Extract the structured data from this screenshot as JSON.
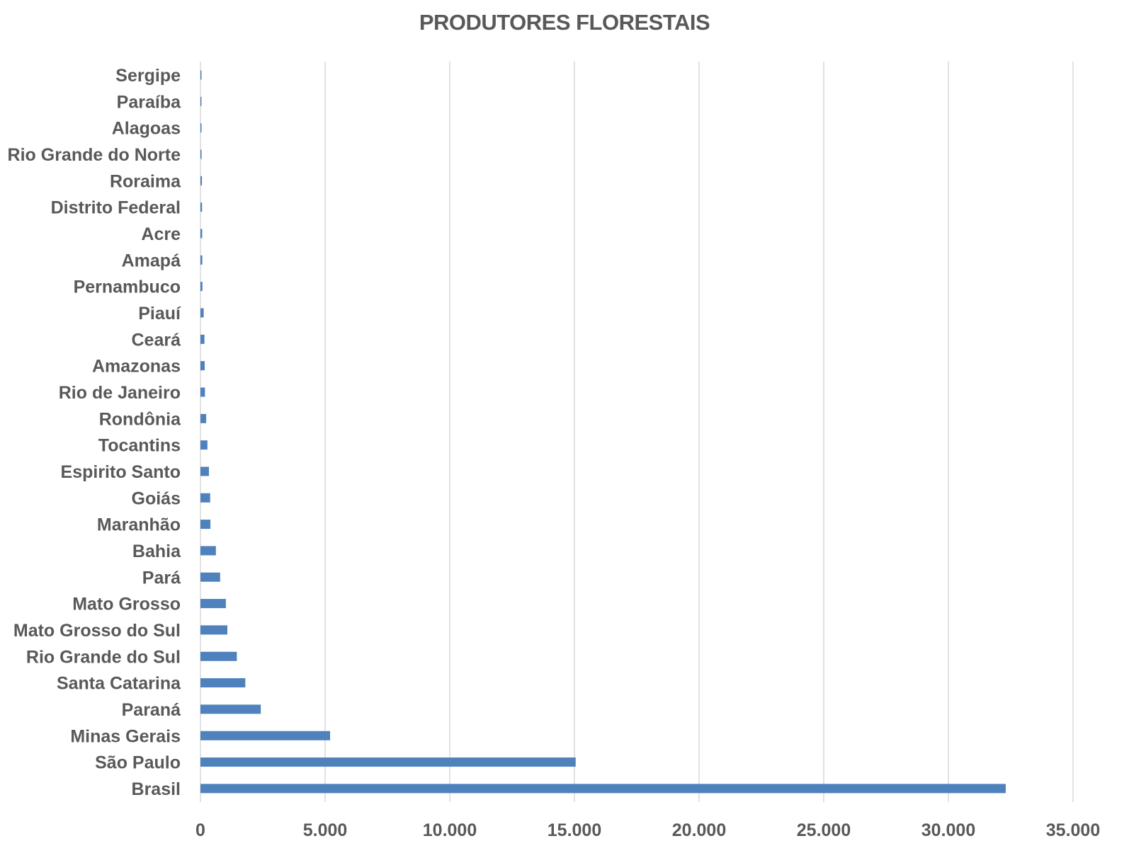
{
  "chart_data": {
    "type": "bar",
    "orientation": "horizontal",
    "title": "PRODUTORES   FLORESTAIS",
    "xlabel": "",
    "ylabel": "",
    "categories": [
      "Sergipe",
      "Paraíba",
      "Alagoas",
      "Rio Grande do Norte",
      "Roraima",
      "Distrito Federal",
      "Acre",
      "Amapá",
      "Pernambuco",
      "Piauí",
      "Ceará",
      "Amazonas",
      "Rio de Janeiro",
      "Rondônia",
      "Tocantins",
      "Espirito Santo",
      "Goiás",
      "Maranhão",
      "Bahia",
      "Pará",
      "Mato Grosso",
      "Mato Grosso do Sul",
      "Rio Grande do Sul",
      "Santa Catarina",
      "Paraná",
      "Minas Gerais",
      "São Paulo",
      "Brasil"
    ],
    "values": [
      5,
      15,
      30,
      45,
      60,
      65,
      70,
      75,
      80,
      130,
      160,
      170,
      180,
      230,
      280,
      340,
      390,
      400,
      620,
      790,
      1020,
      1080,
      1460,
      1800,
      2420,
      5200,
      15050,
      32300
    ],
    "xlim": [
      0,
      35000
    ],
    "ticks": [
      0,
      5000,
      10000,
      15000,
      20000,
      25000,
      30000,
      35000
    ],
    "tick_labels": [
      "0",
      "5.000",
      "10.000",
      "15.000",
      "20.000",
      "25.000",
      "30.000",
      "35.000"
    ],
    "grid": true,
    "legend": "none",
    "colors": {
      "bar": "#4f81bd",
      "grid": "#d9d9d9",
      "text": "#595959"
    }
  }
}
